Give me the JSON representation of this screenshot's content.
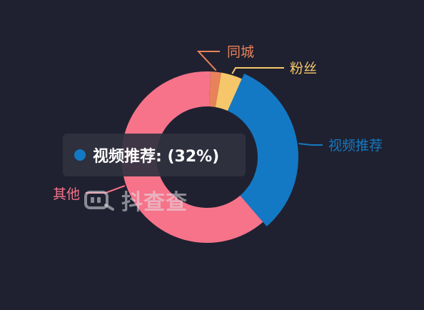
{
  "chart_data": {
    "type": "pie",
    "donut": true,
    "slices": [
      {
        "label": "视频推荐",
        "value": 32,
        "color": "#1479c4"
      },
      {
        "label": "其他",
        "value": 62,
        "color": "#f7738a"
      },
      {
        "label": "同城",
        "value": 2,
        "color": "#e8825a"
      },
      {
        "label": "粉丝",
        "value": 4,
        "color": "#f5c76a"
      }
    ],
    "emphasized_slice": "视频推荐"
  },
  "tooltip": {
    "color": "#1479c4",
    "text": "视频推荐: (32%)"
  },
  "watermark": {
    "text": "抖查查"
  }
}
